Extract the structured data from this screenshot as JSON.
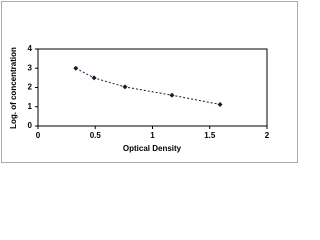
{
  "chart_data": {
    "type": "line",
    "x_label": "Optical Density",
    "y_label": "Log. of concentration",
    "series": [
      {
        "color": "#1a1a2e",
        "x": [
          0.33,
          0.49,
          0.76,
          1.17,
          1.59
        ],
        "values": [
          3.0,
          2.5,
          2.03,
          1.6,
          1.12
        ]
      }
    ],
    "xlim": [
      0,
      2
    ],
    "xticks": [
      0,
      0.5,
      1,
      1.5,
      2
    ],
    "ylim": [
      0,
      4
    ],
    "yticks": [
      0,
      1,
      2,
      3,
      4
    ],
    "grid": false
  }
}
